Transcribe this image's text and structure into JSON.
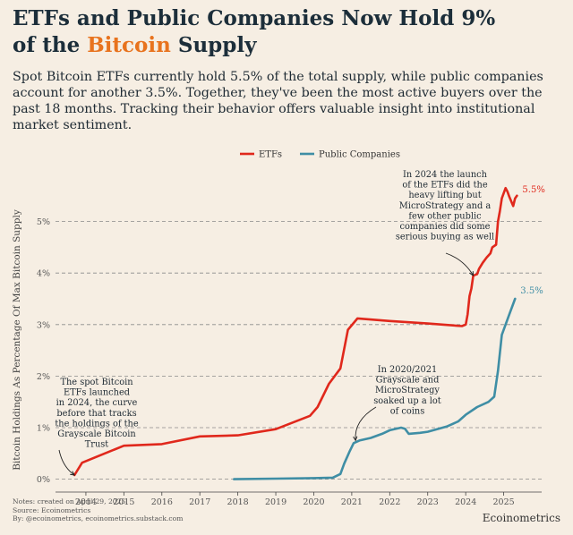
{
  "header": {
    "title_line1": "ETFs and Public Companies Now Hold 9%",
    "title_line2_pre": "of the ",
    "title_line2_highlight": "Bitcoin",
    "title_line2_post": " Supply",
    "highlight_color": "#e8731e",
    "subtitle": "Spot Bitcoin ETFs currently hold 5.5% of the total supply, while public companies account for another 3.5%. Together, they've been the most active buyers over the past 18 months. Tracking their behavior offers valuable insight into institutional market sentiment."
  },
  "chart_data": {
    "type": "line",
    "ylabel": "Bitcoin Holdings As Percentage Of Max Bitcoin Supply",
    "xlabel": "",
    "xlim": [
      2013.2,
      2026.0
    ],
    "ylim": [
      -0.25,
      6.0
    ],
    "grid": "horizontal dashed",
    "legend_position": "top-center",
    "x_ticks": [
      2014,
      2015,
      2016,
      2017,
      2018,
      2019,
      2020,
      2021,
      2022,
      2023,
      2024,
      2025
    ],
    "x_tick_labels": [
      "2014",
      "2015",
      "2016",
      "2017",
      "2018",
      "2019",
      "2020",
      "2021",
      "2022",
      "2023",
      "2024",
      "2025"
    ],
    "y_ticks": [
      0,
      1,
      2,
      3,
      4,
      5
    ],
    "y_tick_labels": [
      "0%",
      "1%",
      "2%",
      "3%",
      "4%",
      "5%"
    ],
    "series": [
      {
        "name": "ETFs",
        "color": "#e0281c",
        "end_label": "5.5%",
        "points": [
          [
            2013.7,
            0.08
          ],
          [
            2013.9,
            0.32
          ],
          [
            2014.5,
            0.5
          ],
          [
            2015.0,
            0.65
          ],
          [
            2016.0,
            0.68
          ],
          [
            2017.0,
            0.83
          ],
          [
            2018.0,
            0.85
          ],
          [
            2019.0,
            0.97
          ],
          [
            2019.9,
            1.23
          ],
          [
            2020.1,
            1.4
          ],
          [
            2020.4,
            1.85
          ],
          [
            2020.7,
            2.15
          ],
          [
            2020.9,
            2.9
          ],
          [
            2021.15,
            3.12
          ],
          [
            2022.0,
            3.07
          ],
          [
            2023.0,
            3.02
          ],
          [
            2023.9,
            2.97
          ],
          [
            2024.0,
            3.0
          ],
          [
            2024.05,
            3.2
          ],
          [
            2024.1,
            3.55
          ],
          [
            2024.15,
            3.7
          ],
          [
            2024.2,
            3.95
          ],
          [
            2024.3,
            3.98
          ],
          [
            2024.35,
            4.08
          ],
          [
            2024.45,
            4.2
          ],
          [
            2024.55,
            4.3
          ],
          [
            2024.65,
            4.38
          ],
          [
            2024.7,
            4.5
          ],
          [
            2024.8,
            4.55
          ],
          [
            2024.85,
            5.0
          ],
          [
            2024.9,
            5.2
          ],
          [
            2024.95,
            5.45
          ],
          [
            2025.0,
            5.55
          ],
          [
            2025.05,
            5.65
          ],
          [
            2025.1,
            5.58
          ],
          [
            2025.15,
            5.48
          ],
          [
            2025.25,
            5.3
          ],
          [
            2025.3,
            5.45
          ],
          [
            2025.35,
            5.5
          ]
        ]
      },
      {
        "name": "Public Companies",
        "color": "#3f8ea5",
        "end_label": "3.5%",
        "points": [
          [
            2017.9,
            0.0
          ],
          [
            2019.0,
            0.01
          ],
          [
            2020.0,
            0.02
          ],
          [
            2020.5,
            0.03
          ],
          [
            2020.7,
            0.1
          ],
          [
            2020.8,
            0.3
          ],
          [
            2020.95,
            0.55
          ],
          [
            2021.05,
            0.7
          ],
          [
            2021.2,
            0.75
          ],
          [
            2021.5,
            0.8
          ],
          [
            2021.8,
            0.88
          ],
          [
            2022.0,
            0.95
          ],
          [
            2022.3,
            1.0
          ],
          [
            2022.4,
            0.98
          ],
          [
            2022.5,
            0.88
          ],
          [
            2022.8,
            0.9
          ],
          [
            2023.0,
            0.92
          ],
          [
            2023.5,
            1.02
          ],
          [
            2023.8,
            1.12
          ],
          [
            2024.0,
            1.25
          ],
          [
            2024.3,
            1.4
          ],
          [
            2024.6,
            1.5
          ],
          [
            2024.75,
            1.6
          ],
          [
            2024.85,
            2.1
          ],
          [
            2024.95,
            2.8
          ],
          [
            2025.05,
            3.0
          ],
          [
            2025.15,
            3.2
          ],
          [
            2025.3,
            3.5
          ]
        ]
      }
    ],
    "annotations": [
      {
        "text": [
          "The spot Bitcoin",
          "ETFs launched",
          "in 2024, the curve",
          "before that tracks",
          "the holdings of the",
          "Grayscale Bitcoin",
          "Trust"
        ],
        "target": [
          2013.7,
          0.08
        ]
      },
      {
        "text": [
          "In 2020/2021",
          "Grayscale and",
          "MicroStrategy",
          "soaked up a lot",
          "of coins"
        ],
        "target": [
          2021.1,
          0.75
        ]
      },
      {
        "text": [
          "In 2024 the launch",
          "of the ETFs did the",
          "heavy lifting but",
          "MicroStrategy and a",
          "few other public",
          "companies did some",
          "serious buying as well"
        ],
        "target": [
          2024.2,
          3.95
        ]
      }
    ]
  },
  "footer": {
    "notes": "Notes: created on April 29, 2025",
    "source": "Source: Ecoinometrics",
    "by": "By: @ecoinometrics, ecoinometrics.substack.com",
    "brand": "Ecoinometrics"
  }
}
